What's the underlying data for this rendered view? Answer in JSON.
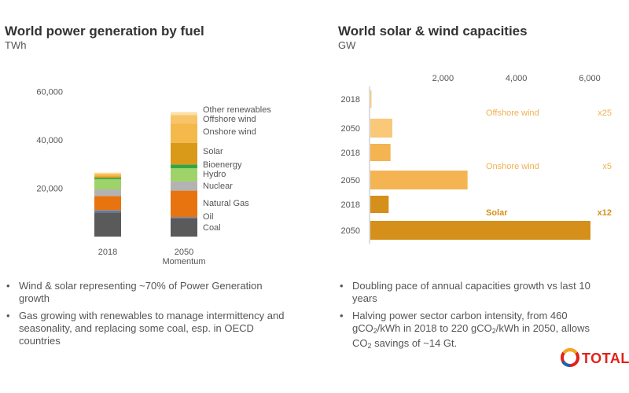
{
  "colors": {
    "coal": "#5a5a5a",
    "oil": "#4d7fbf",
    "natural_gas": "#e8740f",
    "nuclear": "#b3b3b3",
    "hydro": "#9ed36a",
    "bioenergy": "#33a544",
    "solar": "#d99a1a",
    "onshore_wind": "#f5b84a",
    "offshore_wind": "#f7c46a",
    "other_renewables": "#fbe0a8",
    "cap_offshore": "#f9c878",
    "cap_onshore": "#f3b451",
    "cap_solar": "#d4901a",
    "cap_text": "#f0b050"
  },
  "chart_data": [
    {
      "type": "bar",
      "stacked": true,
      "title": "World power generation by fuel",
      "unit": "TWh",
      "categories": [
        "2018",
        "2050"
      ],
      "category_sublabels": [
        "",
        "Momentum"
      ],
      "yticks": [
        "60,000",
        "40,000",
        "20,000"
      ],
      "ylim": [
        0,
        60000
      ],
      "series": [
        {
          "name": "Coal",
          "values": [
            10000,
            7500
          ]
        },
        {
          "name": "Oil",
          "values": [
            800,
            500
          ]
        },
        {
          "name": "Natural Gas",
          "values": [
            6000,
            11000
          ]
        },
        {
          "name": "Nuclear",
          "values": [
            2700,
            3800
          ]
        },
        {
          "name": "Hydro",
          "values": [
            4200,
            5500
          ]
        },
        {
          "name": "Bioenergy",
          "values": [
            600,
            1500
          ]
        },
        {
          "name": "Solar",
          "values": [
            600,
            9000
          ]
        },
        {
          "name": "Onshore wind",
          "values": [
            1000,
            8000
          ]
        },
        {
          "name": "Offshore wind",
          "values": [
            100,
            3500
          ]
        },
        {
          "name": "Other renewables",
          "values": [
            500,
            1200
          ]
        }
      ],
      "legend_labels": [
        "Other renewables",
        "Offshore wind",
        "Onshore wind",
        "Solar",
        "Bioenergy",
        "Hydro",
        "Nuclear",
        "Natural Gas",
        "Oil",
        "Coal"
      ]
    },
    {
      "type": "bar",
      "orientation": "horizontal",
      "title": "World solar & wind capacities",
      "unit": "GW",
      "xticks": [
        "2,000",
        "4,000",
        "6,000"
      ],
      "xlim": [
        0,
        6000
      ],
      "bars": [
        {
          "year": "2018",
          "value": 25
        },
        {
          "year": "2050",
          "value": 600
        },
        {
          "year": "2018",
          "value": 550
        },
        {
          "year": "2050",
          "value": 2650
        },
        {
          "year": "2018",
          "value": 500
        },
        {
          "year": "2050",
          "value": 6000
        }
      ],
      "groups": [
        {
          "name": "Offshore wind",
          "multiplier": "x25"
        },
        {
          "name": "Onshore wind",
          "multiplier": "x5"
        },
        {
          "name": "Solar",
          "multiplier": "x12"
        }
      ]
    }
  ],
  "left_bullets": [
    "Wind & solar representing ~70% of Power Generation growth",
    "Gas growing with renewables to manage intermittency and seasonality, and replacing some coal, esp. in OECD countries"
  ],
  "right_bullets": {
    "b1": "Doubling pace of annual capacities growth vs last 10 years",
    "b2_a": "Halving power sector carbon intensity, from 460 gCO",
    "sub2": "2",
    "b2_b": "/kWh in 2018 to 220 gCO",
    "b2_c": "/kWh in 2050, allows CO",
    "b2_d": " savings of ~14 Gt."
  },
  "bullet_char": "•",
  "logo_text": "TOTAL"
}
